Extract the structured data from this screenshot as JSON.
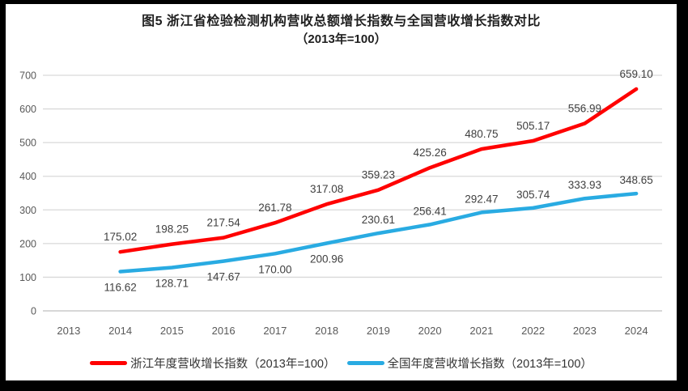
{
  "figure": {
    "frame_color": "#000000",
    "background_color": "#ffffff"
  },
  "chart_data": {
    "type": "line",
    "title": "图5  浙江省检验检测机构营收总额增长指数与全国营收增长指数对比",
    "subtitle": "（2013年=100）",
    "categories": [
      "2013",
      "2014",
      "2015",
      "2016",
      "2017",
      "2018",
      "2019",
      "2020",
      "2021",
      "2022",
      "2023",
      "2024"
    ],
    "y_axis": {
      "min": 0,
      "max": 700,
      "step": 100,
      "ticks": [
        0,
        100,
        200,
        300,
        400,
        500,
        600,
        700
      ]
    },
    "grid": "horizontal-only",
    "legend_position": "bottom-center",
    "data_labels_visible": true,
    "series": [
      {
        "name": "浙江年度营收增长指数（2013年=100）",
        "color": "#FF0000",
        "start_category": "2014",
        "values": [
          175.02,
          198.25,
          217.54,
          261.78,
          317.08,
          359.23,
          425.26,
          480.75,
          505.17,
          556.99,
          659.1
        ],
        "label_side": [
          "above",
          "above",
          "above",
          "above",
          "above",
          "above",
          "above",
          "above",
          "above",
          "above",
          "above"
        ]
      },
      {
        "name": "全国年度营收增长指数（2013年=100）",
        "color": "#29ABE2",
        "start_category": "2014",
        "values": [
          116.62,
          128.71,
          147.67,
          170.0,
          200.96,
          230.61,
          256.41,
          292.47,
          305.74,
          333.93,
          348.65
        ],
        "label_side": [
          "below",
          "below",
          "below",
          "below",
          "below",
          "above",
          "above",
          "above",
          "above",
          "above",
          "above"
        ]
      }
    ],
    "colors": {
      "gridline": "#D9D9D9",
      "axis_line": "#BFBFBF",
      "axis_label": "#595959",
      "data_label": "#404040"
    }
  }
}
